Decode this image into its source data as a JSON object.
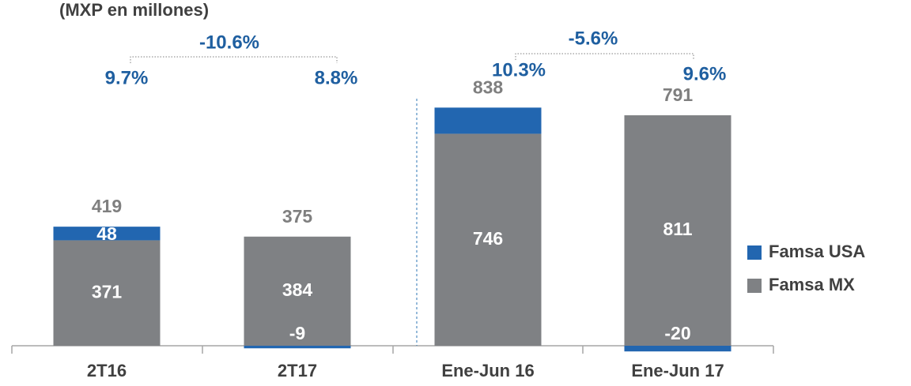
{
  "chart_data": {
    "type": "stacked_bar",
    "title": "(MXP en millones)",
    "categories": [
      "2T16",
      "2T17",
      "Ene-Jun 16",
      "Ene-Jun 17"
    ],
    "series": [
      {
        "name": "Famsa MX",
        "color": "#7f8184",
        "values": [
          371,
          384,
          746,
          811
        ]
      },
      {
        "name": "Famsa USA",
        "color": "#2266b0",
        "values": [
          48,
          -9,
          92,
          -20
        ],
        "value_labels": [
          "48",
          "-9",
          null,
          "-20"
        ]
      }
    ],
    "totals": [
      419,
      375,
      838,
      791
    ],
    "margins": [
      "9.7%",
      "8.8%",
      "10.3%",
      "9.6%"
    ],
    "changes": [
      "-10.6%",
      "-5.6%"
    ]
  }
}
